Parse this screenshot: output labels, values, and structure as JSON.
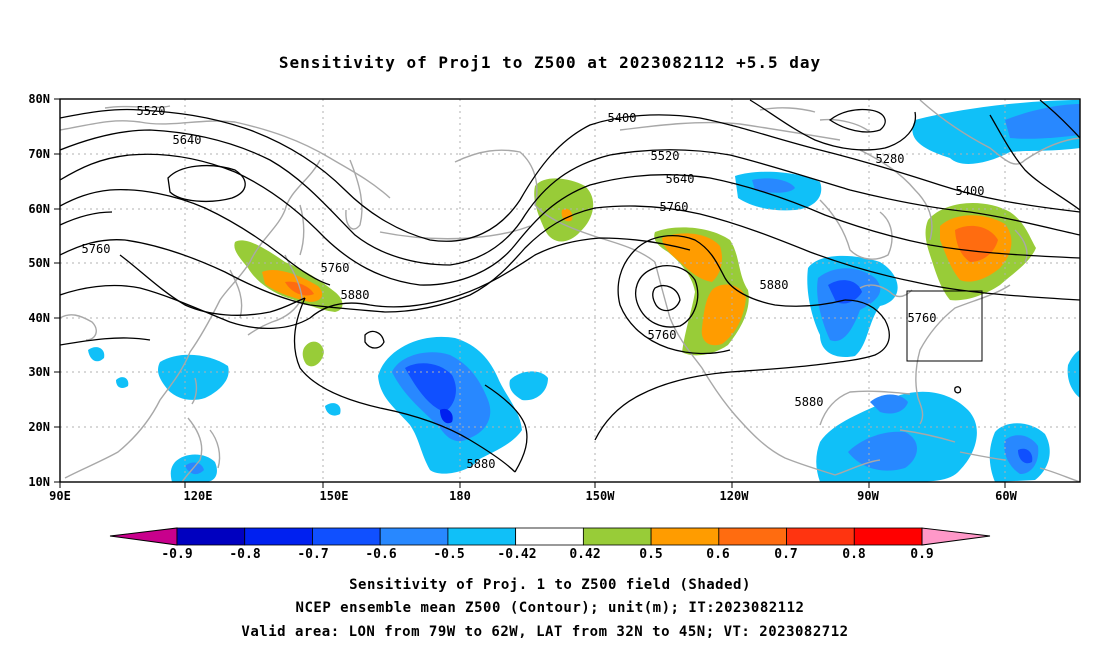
{
  "title": "Sensitivity of Proj1 to Z500 at 2023082112 +5.5 day",
  "map": {
    "lon_range": [
      "90E",
      "50W"
    ],
    "lat_range": [
      "10N",
      "80N"
    ],
    "lon_ticks": [
      "90E",
      "120E",
      "150E",
      "180",
      "150W",
      "120W",
      "90W",
      "60W"
    ],
    "lat_ticks": [
      "10N",
      "20N",
      "30N",
      "40N",
      "50N",
      "60N",
      "70N",
      "80N"
    ],
    "grid": "dotted",
    "valid_box": {
      "lon_west": "79W",
      "lon_east": "62W",
      "lat_south": "32N",
      "lat_north": "45N"
    }
  },
  "contour_labels": [
    "5520",
    "5640",
    "5760",
    "5760",
    "5880",
    "5400",
    "5520",
    "5640",
    "5760",
    "5760",
    "5880",
    "5880",
    "5880",
    "5280",
    "5400",
    "5760"
  ],
  "colorbar": {
    "labels": [
      "-0.9",
      "-0.8",
      "-0.7",
      "-0.6",
      "-0.5",
      "-0.42",
      "0.42",
      "0.5",
      "0.6",
      "0.7",
      "0.8",
      "0.9"
    ],
    "colors": [
      "#c8008c",
      "#0000c0",
      "#0020f0",
      "#1050ff",
      "#2888ff",
      "#10c0f8",
      "#ffffff",
      "#98cc38",
      "#ff9c00",
      "#ff6c10",
      "#ff3410",
      "#ff0000",
      "#ff98c8"
    ]
  },
  "caption": {
    "line1": "Sensitivity of Proj. 1 to Z500 field (Shaded)",
    "line2": "NCEP ensemble mean Z500 (Contour); unit(m); IT:2023082112",
    "line3": "Valid area: LON from 79W to 62W, LAT from 32N to 45N; VT: 2023082712"
  }
}
